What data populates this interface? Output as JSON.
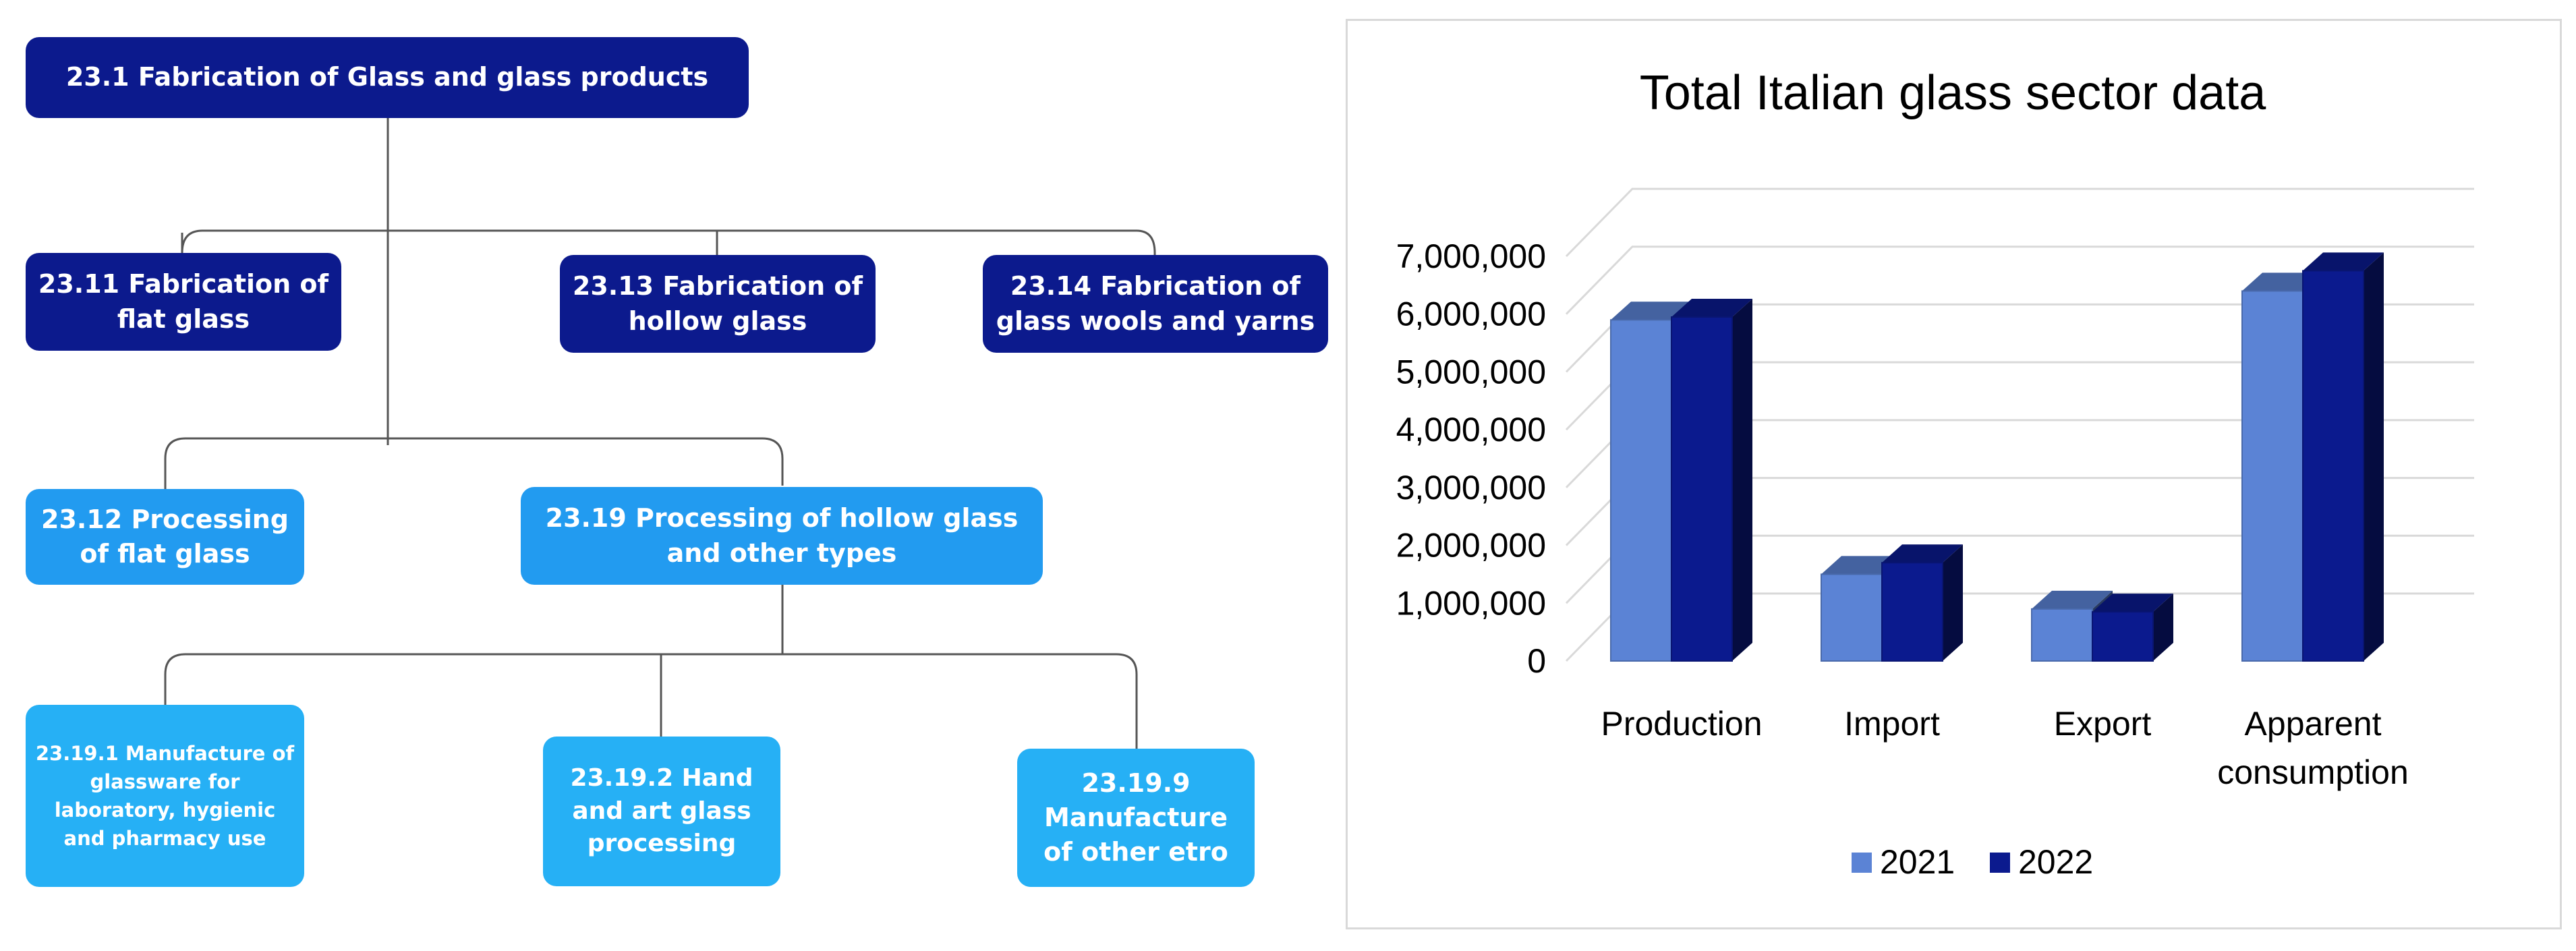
{
  "org_chart": {
    "root": "23.1 Fabrication of Glass and glass products",
    "level1": [
      "23.11 Fabrication of flat glass",
      "23.13 Fabrication of hollow glass",
      "23.14 Fabrication of glass wools and yarns"
    ],
    "level2": [
      "23.12 Processing of flat glass",
      "23.19 Processing of hollow glass and other types"
    ],
    "level3": [
      "23.19.1 Manufacture of glassware for laboratory, hygienic and pharmacy use",
      "23.19.2 Hand and art glass processing",
      "23.19.9 Manufacture of other etro"
    ],
    "colors": {
      "dark": "#0c1a8d",
      "mid": "#229bf0",
      "light": "#26b0f5",
      "line": "#555555"
    }
  },
  "chart_data": {
    "type": "bar",
    "title": "Total Italian glass sector data",
    "categories": [
      "Production",
      "Import",
      "Export",
      "Apparent consumption"
    ],
    "series": [
      {
        "name": "2021",
        "color": "#5b83d5",
        "values": [
          5900000,
          1500000,
          900000,
          6400000
        ]
      },
      {
        "name": "2022",
        "color": "#0b1a8e",
        "values": [
          5950000,
          1700000,
          850000,
          6750000
        ]
      }
    ],
    "ylim": [
      0,
      7000000
    ],
    "yticks": [
      0,
      1000000,
      2000000,
      3000000,
      4000000,
      5000000,
      6000000,
      7000000
    ],
    "ytick_labels": [
      "0",
      "1,000,000",
      "2,000,000",
      "3,000,000",
      "4,000,000",
      "5,000,000",
      "6,000,000",
      "7,000,000"
    ],
    "xlabel": "",
    "ylabel": "",
    "legend_position": "bottom",
    "grid": true
  }
}
